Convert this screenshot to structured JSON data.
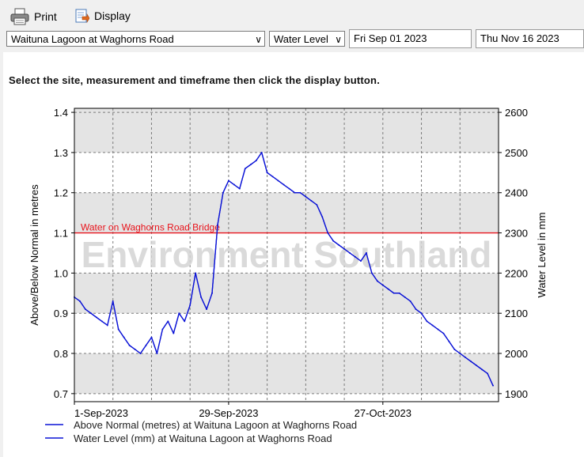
{
  "toolbar": {
    "print_label": "Print",
    "display_label": "Display"
  },
  "controls": {
    "site": "Waituna Lagoon at Waghorns Road",
    "measurement": "Water Level",
    "start_date": "Fri Sep 01 2023",
    "end_date": "Thu Nov 16 2023"
  },
  "instruction": "Select the site, measurement and timeframe then click the display button.",
  "chart_data": {
    "type": "line",
    "watermark": "Environment Southland",
    "ylabel": "Above/Below Normal in metres",
    "y2label": "Water Level in mm",
    "ylim": [
      0.68,
      1.41
    ],
    "y2lim": [
      1880,
      2610
    ],
    "yticks": [
      0.7,
      0.8,
      0.9,
      1.0,
      1.1,
      1.2,
      1.3,
      1.4
    ],
    "yticklabels": [
      "0.7",
      "0.8",
      "0.9",
      "1.0",
      "1.1",
      "1.2",
      "1.3",
      "1.4"
    ],
    "y2ticks": [
      1900,
      2000,
      2100,
      2200,
      2300,
      2400,
      2500,
      2600
    ],
    "y2ticklabels": [
      "1900",
      "2000",
      "2100",
      "2200",
      "2300",
      "2400",
      "2500",
      "2600"
    ],
    "xlim": [
      "2023-09-01",
      "2023-11-17"
    ],
    "xticks": [
      "2023-09-01",
      "2023-09-29",
      "2023-10-27"
    ],
    "xticklabels": [
      "1-Sep-2023",
      "29-Sep-2023",
      "27-Oct-2023"
    ],
    "x_gridlines": [
      "2023-09-01",
      "2023-09-08",
      "2023-09-15",
      "2023-09-22",
      "2023-09-29",
      "2023-10-06",
      "2023-10-13",
      "2023-10-20",
      "2023-10-27",
      "2023-11-03",
      "2023-11-10"
    ],
    "grid": true,
    "reference_line": {
      "label": "Water on Waghorns Road Bridge",
      "value": 1.1,
      "color": "#e8141c"
    },
    "legend_position": "bottom",
    "series": [
      {
        "name": "Above Normal (metres) at Waituna Lagoon at Waghorns Road",
        "axis": "left",
        "color": "#0a12d6",
        "x": [
          "2023-09-01",
          "2023-09-02",
          "2023-09-03",
          "2023-09-04",
          "2023-09-05",
          "2023-09-06",
          "2023-09-07",
          "2023-09-08",
          "2023-09-09",
          "2023-09-10",
          "2023-09-11",
          "2023-09-12",
          "2023-09-13",
          "2023-09-14",
          "2023-09-15",
          "2023-09-16",
          "2023-09-17",
          "2023-09-18",
          "2023-09-19",
          "2023-09-20",
          "2023-09-21",
          "2023-09-22",
          "2023-09-23",
          "2023-09-24",
          "2023-09-25",
          "2023-09-26",
          "2023-09-27",
          "2023-09-28",
          "2023-09-29",
          "2023-09-30",
          "2023-10-01",
          "2023-10-02",
          "2023-10-03",
          "2023-10-04",
          "2023-10-05",
          "2023-10-06",
          "2023-10-07",
          "2023-10-08",
          "2023-10-09",
          "2023-10-10",
          "2023-10-11",
          "2023-10-12",
          "2023-10-13",
          "2023-10-14",
          "2023-10-15",
          "2023-10-16",
          "2023-10-17",
          "2023-10-18",
          "2023-10-19",
          "2023-10-20",
          "2023-10-21",
          "2023-10-22",
          "2023-10-23",
          "2023-10-24",
          "2023-10-25",
          "2023-10-26",
          "2023-10-27",
          "2023-10-28",
          "2023-10-29",
          "2023-10-30",
          "2023-10-31",
          "2023-11-01",
          "2023-11-02",
          "2023-11-03",
          "2023-11-04",
          "2023-11-05",
          "2023-11-06",
          "2023-11-07",
          "2023-11-08",
          "2023-11-09",
          "2023-11-10",
          "2023-11-11",
          "2023-11-12",
          "2023-11-13",
          "2023-11-14",
          "2023-11-15",
          "2023-11-16"
        ],
        "values": [
          0.94,
          0.93,
          0.91,
          0.9,
          0.89,
          0.88,
          0.87,
          0.93,
          0.86,
          0.84,
          0.82,
          0.81,
          0.8,
          0.82,
          0.84,
          0.8,
          0.86,
          0.88,
          0.85,
          0.9,
          0.88,
          0.92,
          1.0,
          0.94,
          0.91,
          0.95,
          1.12,
          1.2,
          1.23,
          1.22,
          1.21,
          1.26,
          1.27,
          1.28,
          1.3,
          1.25,
          1.24,
          1.23,
          1.22,
          1.21,
          1.2,
          1.2,
          1.19,
          1.18,
          1.17,
          1.14,
          1.1,
          1.08,
          1.07,
          1.06,
          1.05,
          1.04,
          1.03,
          1.05,
          1.0,
          0.98,
          0.97,
          0.96,
          0.95,
          0.95,
          0.94,
          0.93,
          0.91,
          0.9,
          0.88,
          0.87,
          0.86,
          0.85,
          0.83,
          0.81,
          0.8,
          0.79,
          0.78,
          0.77,
          0.76,
          0.75,
          0.72
        ]
      },
      {
        "name": "Water Level (mm) at Waituna Lagoon at Waghorns Road",
        "axis": "right",
        "color": "#0a12d6",
        "x": [
          "2023-09-01",
          "2023-09-02",
          "2023-09-03",
          "2023-09-04",
          "2023-09-05",
          "2023-09-06",
          "2023-09-07",
          "2023-09-08",
          "2023-09-09",
          "2023-09-10",
          "2023-09-11",
          "2023-09-12",
          "2023-09-13",
          "2023-09-14",
          "2023-09-15",
          "2023-09-16",
          "2023-09-17",
          "2023-09-18",
          "2023-09-19",
          "2023-09-20",
          "2023-09-21",
          "2023-09-22",
          "2023-09-23",
          "2023-09-24",
          "2023-09-25",
          "2023-09-26",
          "2023-09-27",
          "2023-09-28",
          "2023-09-29",
          "2023-09-30",
          "2023-10-01",
          "2023-10-02",
          "2023-10-03",
          "2023-10-04",
          "2023-10-05",
          "2023-10-06",
          "2023-10-07",
          "2023-10-08",
          "2023-10-09",
          "2023-10-10",
          "2023-10-11",
          "2023-10-12",
          "2023-10-13",
          "2023-10-14",
          "2023-10-15",
          "2023-10-16",
          "2023-10-17",
          "2023-10-18",
          "2023-10-19",
          "2023-10-20",
          "2023-10-21",
          "2023-10-22",
          "2023-10-23",
          "2023-10-24",
          "2023-10-25",
          "2023-10-26",
          "2023-10-27",
          "2023-10-28",
          "2023-10-29",
          "2023-10-30",
          "2023-10-31",
          "2023-11-01",
          "2023-11-02",
          "2023-11-03",
          "2023-11-04",
          "2023-11-05",
          "2023-11-06",
          "2023-11-07",
          "2023-11-08",
          "2023-11-09",
          "2023-11-10",
          "2023-11-11",
          "2023-11-12",
          "2023-11-13",
          "2023-11-14",
          "2023-11-15",
          "2023-11-16"
        ],
        "values": [
          2140,
          2130,
          2110,
          2100,
          2090,
          2080,
          2070,
          2130,
          2060,
          2040,
          2020,
          2010,
          2000,
          2020,
          2040,
          2000,
          2060,
          2080,
          2050,
          2100,
          2080,
          2120,
          2200,
          2140,
          2110,
          2150,
          2320,
          2400,
          2430,
          2420,
          2410,
          2460,
          2470,
          2480,
          2500,
          2450,
          2440,
          2430,
          2420,
          2410,
          2400,
          2400,
          2390,
          2380,
          2370,
          2340,
          2300,
          2280,
          2270,
          2260,
          2250,
          2240,
          2230,
          2250,
          2200,
          2180,
          2170,
          2160,
          2150,
          2150,
          2140,
          2130,
          2110,
          2100,
          2080,
          2070,
          2060,
          2050,
          2030,
          2010,
          2000,
          1990,
          1980,
          1970,
          1960,
          1950,
          1920
        ]
      }
    ]
  },
  "colors": {
    "plot_band_gray": "#e4e4e4",
    "plot_band_white": "#ffffff",
    "series": "#0a12d6",
    "reference": "#e8141c",
    "watermark": "#d4d4d4"
  }
}
